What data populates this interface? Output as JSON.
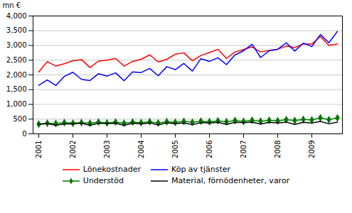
{
  "chart_data": {
    "type": "line",
    "categories": [
      "2001",
      null,
      null,
      null,
      "2002",
      null,
      null,
      null,
      "2003",
      null,
      null,
      null,
      "2004",
      null,
      null,
      null,
      "2005",
      null,
      null,
      null,
      "2006",
      null,
      null,
      null,
      "2007",
      null,
      null,
      null,
      "2008",
      null,
      null,
      null,
      "2009",
      null,
      null,
      null
    ],
    "ylabel": "mn €",
    "ylim": [
      0,
      4000
    ],
    "yticks": [
      0,
      500,
      1000,
      1500,
      2000,
      2500,
      3000,
      3500,
      4000
    ],
    "grid": true,
    "legend": "bottom",
    "series": [
      {
        "name": "Lönekostnader",
        "color": "#ff0000",
        "values": [
          2100,
          2450,
          2300,
          2380,
          2480,
          2520,
          2250,
          2470,
          2500,
          2560,
          2300,
          2460,
          2530,
          2680,
          2440,
          2530,
          2700,
          2750,
          2480,
          2660,
          2760,
          2870,
          2560,
          2780,
          2860,
          2950,
          2780,
          2830,
          2870,
          2980,
          2930,
          3050,
          3050,
          3300,
          3000,
          3050
        ]
      },
      {
        "name": "Köp av tjänster",
        "color": "#0000ff",
        "values": [
          1650,
          1830,
          1640,
          1950,
          2090,
          1850,
          1810,
          2040,
          1960,
          2070,
          1800,
          2100,
          2080,
          2220,
          1970,
          2280,
          2180,
          2390,
          2130,
          2550,
          2460,
          2580,
          2350,
          2680,
          2820,
          3040,
          2590,
          2820,
          2870,
          3090,
          2810,
          3080,
          2960,
          3370,
          3090,
          3480
        ]
      },
      {
        "name": "Understöd",
        "color": "#007700",
        "marker": "diamond",
        "values": [
          330,
          360,
          350,
          380,
          360,
          380,
          360,
          400,
          370,
          400,
          360,
          400,
          380,
          410,
          370,
          410,
          390,
          420,
          390,
          430,
          410,
          440,
          410,
          450,
          420,
          460,
          430,
          460,
          440,
          480,
          450,
          490,
          470,
          540,
          480,
          540
        ]
      },
      {
        "name": "Material, förnödenheter, varor",
        "color": "#000000",
        "values": [
          320,
          350,
          290,
          340,
          340,
          360,
          290,
          360,
          350,
          360,
          290,
          360,
          340,
          370,
          300,
          370,
          350,
          370,
          310,
          380,
          370,
          390,
          320,
          390,
          380,
          400,
          330,
          390,
          370,
          400,
          320,
          390,
          370,
          420,
          340,
          400
        ]
      }
    ]
  }
}
